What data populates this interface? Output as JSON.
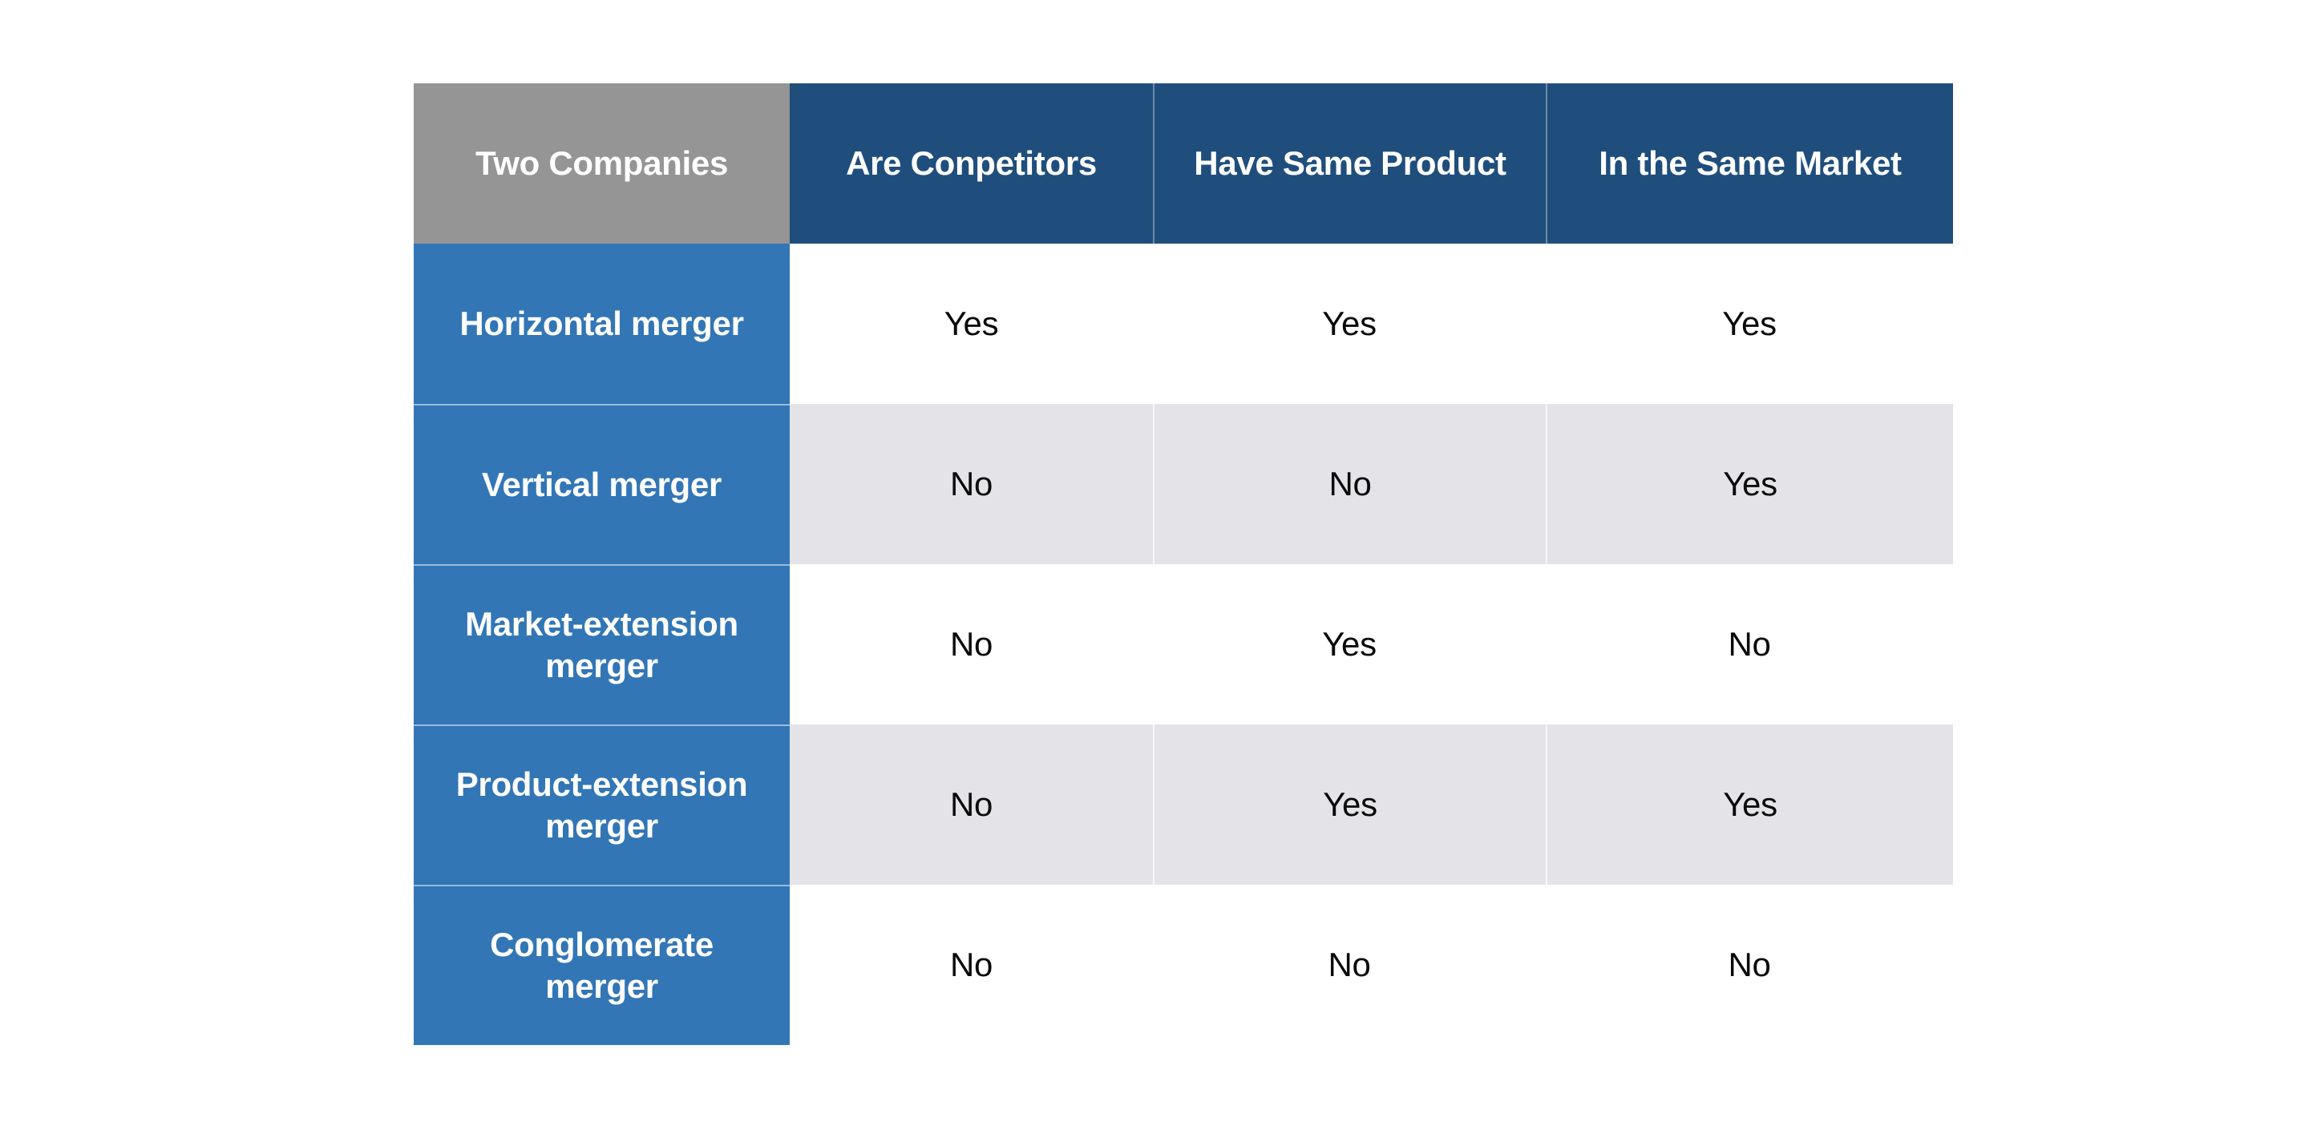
{
  "table": {
    "columns": [
      {
        "label": "Two Companies"
      },
      {
        "label": "Are Conpetitors"
      },
      {
        "label": "Have Same Product"
      },
      {
        "label": "In the Same Market"
      }
    ],
    "rows": [
      {
        "label": "Horizontal merger",
        "values": [
          "Yes",
          "Yes",
          "Yes"
        ]
      },
      {
        "label": "Vertical merger",
        "values": [
          "No",
          "No",
          "Yes"
        ]
      },
      {
        "label": "Market-extension merger",
        "values": [
          "No",
          "Yes",
          "No"
        ]
      },
      {
        "label": "Product-extension merger",
        "values": [
          "No",
          "Yes",
          "Yes"
        ]
      },
      {
        "label": "Conglomerate merger",
        "values": [
          "No",
          "No",
          "No"
        ]
      }
    ]
  },
  "colors": {
    "header_navy": "#1F4E7C",
    "row_label_blue": "#3276B5",
    "corner_gray": "#959595",
    "stripe_gray": "#E4E4E8",
    "data_text": "#0a0a0a",
    "header_text": "#ffffff"
  },
  "chart_data": {
    "type": "table",
    "title": "",
    "columns": [
      "Two Companies",
      "Are Conpetitors",
      "Have Same Product",
      "In the Same Market"
    ],
    "rows": [
      [
        "Horizontal merger",
        "Yes",
        "Yes",
        "Yes"
      ],
      [
        "Vertical merger",
        "No",
        "No",
        "Yes"
      ],
      [
        "Market-extension merger",
        "No",
        "Yes",
        "No"
      ],
      [
        "Product-extension merger",
        "No",
        "Yes",
        "Yes"
      ],
      [
        "Conglomerate merger",
        "No",
        "No",
        "No"
      ]
    ],
    "layout_hints": {
      "header_fill": "#1F4E7C",
      "corner_fill": "#959595",
      "row_label_fill": "#3276B5",
      "zebra_stripes": [
        "#ffffff",
        "#E4E4E8"
      ],
      "grid": "off"
    }
  }
}
